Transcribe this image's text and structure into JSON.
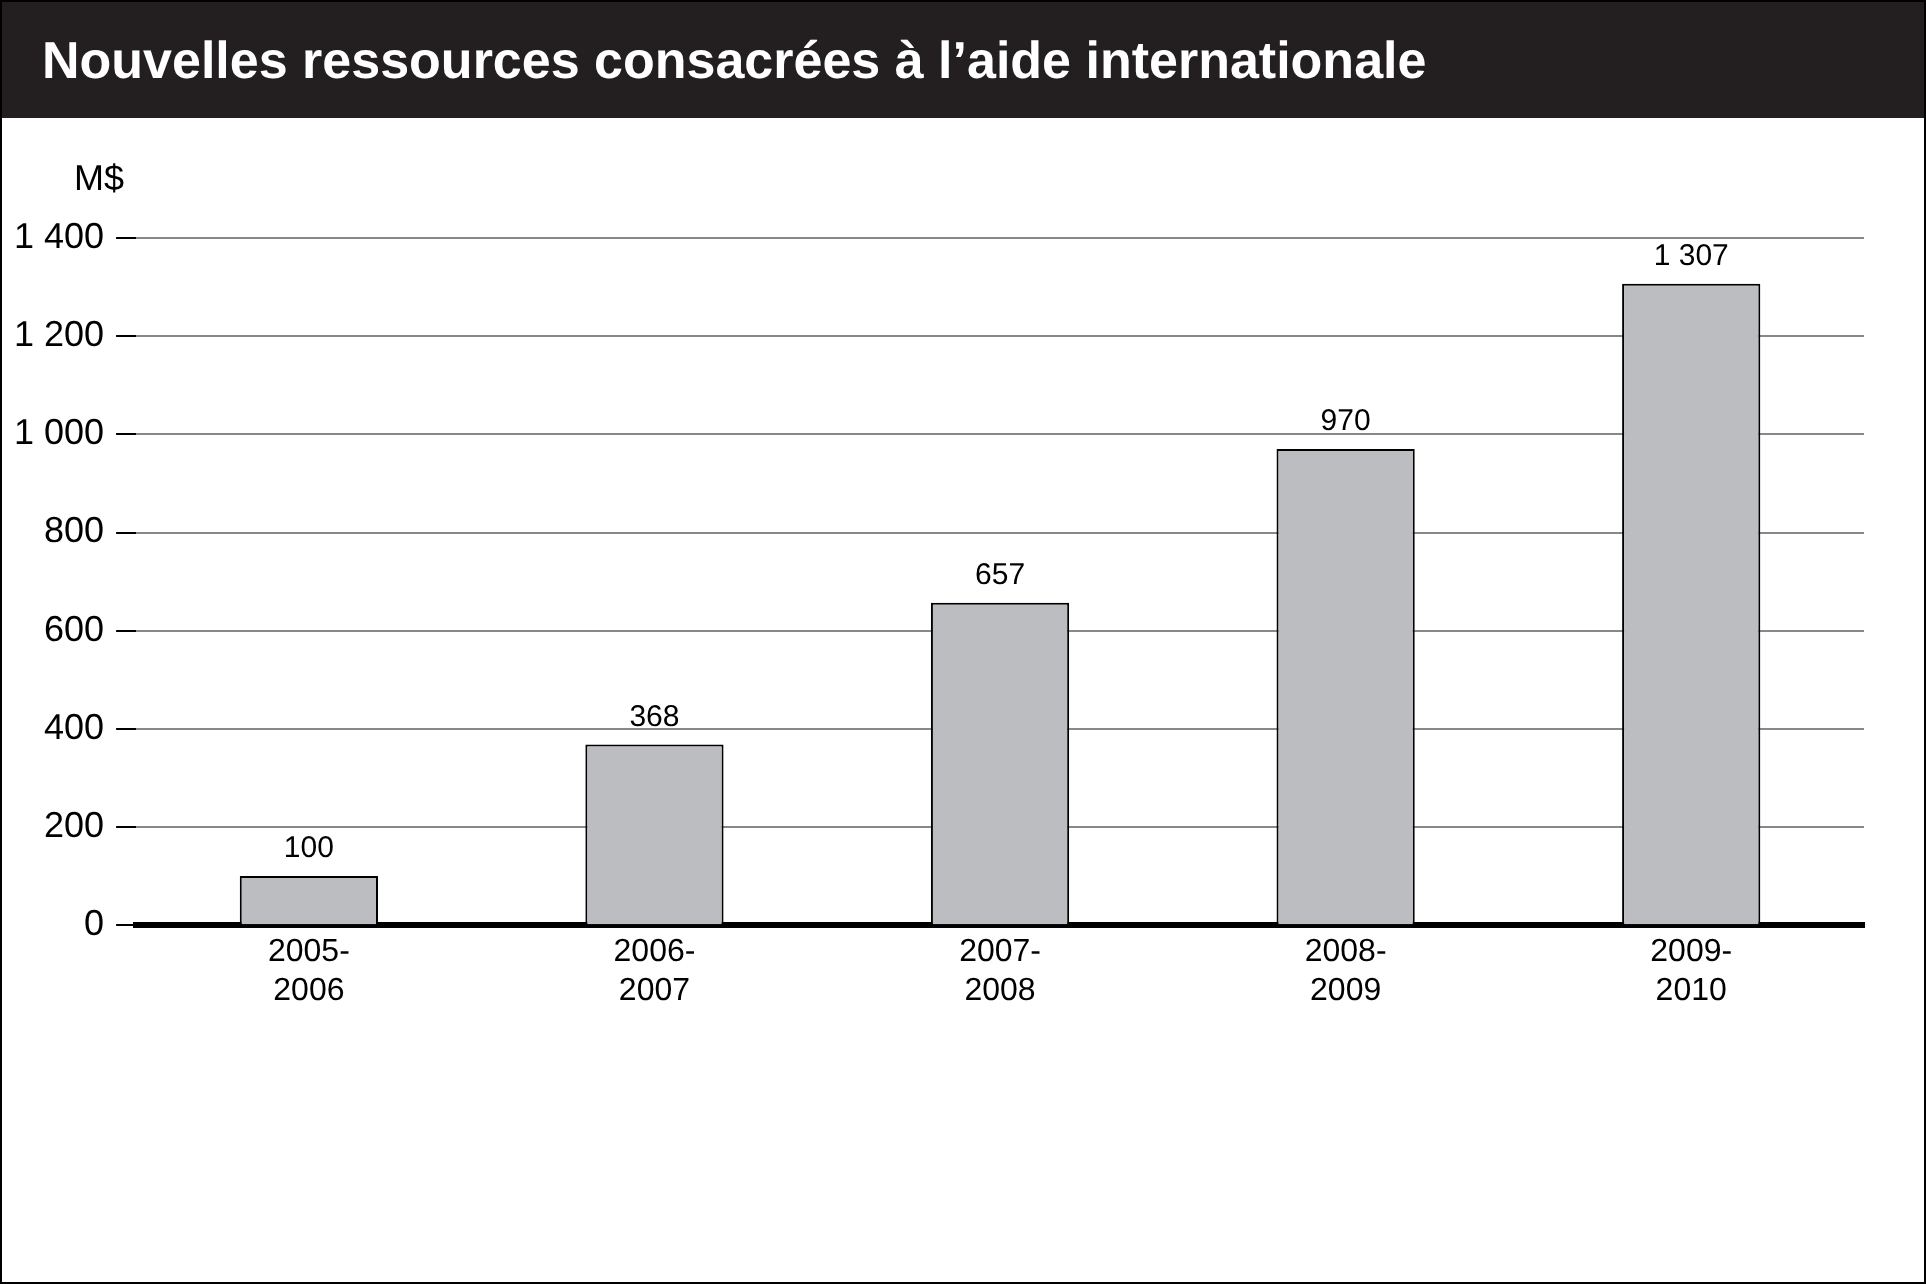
{
  "chart_data": {
    "type": "bar",
    "title": "Nouvelles ressources consacrées à l’aide internationale",
    "ylabel": "M$",
    "categories": [
      "2005-2006",
      "2006-2007",
      "2007-2008",
      "2008-2009",
      "2009-2010"
    ],
    "values": [
      100,
      368,
      657,
      970,
      1307
    ],
    "value_labels": [
      "100",
      "368",
      "657",
      "970",
      "1 307"
    ],
    "color": "#bcbdc0",
    "ylim": [
      0,
      1400
    ],
    "yticks": [
      0,
      200,
      400,
      600,
      800,
      {
        "value": 1000,
        "label": "1 000"
      },
      {
        "value": 1200,
        "label": "1 200"
      },
      {
        "value": 1400,
        "label": "1 400"
      }
    ],
    "grid": "y",
    "legend": false
  }
}
